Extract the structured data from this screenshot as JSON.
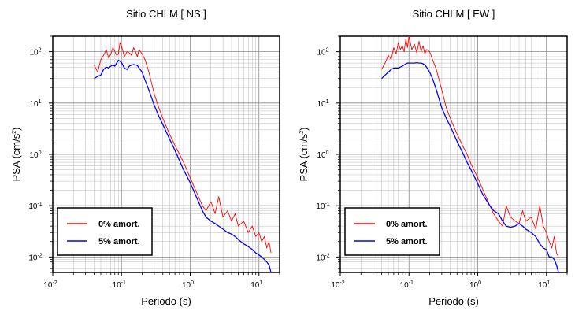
{
  "chart_data": [
    {
      "type": "line",
      "title": "Sitio CHLM [ NS ]",
      "xlabel": "Periodo (s)",
      "ylabel": "PSA (cm/s2)",
      "xscale": "log",
      "yscale": "log",
      "xlim": [
        0.01,
        20
      ],
      "ylim": [
        0.005,
        200
      ],
      "grid": true,
      "legend_position": "bottom-left",
      "x_tick_labels": [
        "10-2",
        "10-1",
        "100",
        "101"
      ],
      "y_tick_labels": [
        "10-2",
        "10-1",
        "100",
        "101",
        "102"
      ],
      "series": [
        {
          "name": "0% amort.",
          "color": "#ff0000",
          "x": [
            0.04,
            0.045,
            0.05,
            0.055,
            0.06,
            0.065,
            0.07,
            0.075,
            0.08,
            0.085,
            0.09,
            0.095,
            0.1,
            0.11,
            0.12,
            0.13,
            0.14,
            0.15,
            0.16,
            0.17,
            0.18,
            0.2,
            0.22,
            0.25,
            0.3,
            0.35,
            0.4,
            0.5,
            0.6,
            0.7,
            0.8,
            1.0,
            1.2,
            1.5,
            1.7,
            2.0,
            2.3,
            2.6,
            3.0,
            3.5,
            4.0,
            4.5,
            5.0,
            6.0,
            7.0,
            8.0,
            9.0,
            10.0,
            11.0,
            12.0,
            13.0,
            14.0,
            15.0
          ],
          "values": [
            55,
            40,
            70,
            85,
            110,
            75,
            90,
            120,
            100,
            85,
            90,
            150,
            130,
            80,
            100,
            95,
            85,
            120,
            100,
            80,
            110,
            90,
            70,
            40,
            15,
            8,
            5,
            2.5,
            1.5,
            1.0,
            0.7,
            0.35,
            0.2,
            0.1,
            0.08,
            0.12,
            0.07,
            0.15,
            0.06,
            0.08,
            0.05,
            0.07,
            0.04,
            0.05,
            0.03,
            0.04,
            0.025,
            0.03,
            0.02,
            0.025,
            0.015,
            0.02,
            0.012
          ]
        },
        {
          "name": "5% amort.",
          "color": "#0000ff",
          "x": [
            0.04,
            0.045,
            0.05,
            0.055,
            0.06,
            0.065,
            0.07,
            0.075,
            0.08,
            0.085,
            0.09,
            0.095,
            0.1,
            0.11,
            0.12,
            0.13,
            0.14,
            0.15,
            0.16,
            0.17,
            0.18,
            0.2,
            0.22,
            0.25,
            0.3,
            0.35,
            0.4,
            0.5,
            0.6,
            0.7,
            0.8,
            1.0,
            1.2,
            1.5,
            1.7,
            2.0,
            2.3,
            2.6,
            3.0,
            3.5,
            4.0,
            4.5,
            5.0,
            6.0,
            7.0,
            8.0,
            9.0,
            10.0,
            11.0,
            12.0,
            13.0,
            14.0,
            15.0
          ],
          "values": [
            30,
            33,
            35,
            45,
            50,
            48,
            52,
            55,
            52,
            60,
            68,
            65,
            62,
            48,
            45,
            52,
            55,
            56,
            55,
            54,
            48,
            40,
            28,
            18,
            9,
            5.5,
            3.8,
            2.0,
            1.2,
            0.75,
            0.5,
            0.28,
            0.16,
            0.08,
            0.06,
            0.05,
            0.045,
            0.04,
            0.035,
            0.03,
            0.028,
            0.025,
            0.022,
            0.018,
            0.016,
            0.014,
            0.012,
            0.011,
            0.01,
            0.009,
            0.008,
            0.007,
            0.005
          ]
        }
      ]
    },
    {
      "type": "line",
      "title": "Sitio CHLM [ EW ]",
      "xlabel": "Periodo (s)",
      "ylabel": "PSA (cm/s2)",
      "xscale": "log",
      "yscale": "log",
      "xlim": [
        0.01,
        20
      ],
      "ylim": [
        0.005,
        200
      ],
      "grid": true,
      "legend_position": "bottom-left",
      "x_tick_labels": [
        "10-2",
        "10-1",
        "100",
        "101"
      ],
      "y_tick_labels": [
        "10-2",
        "10-1",
        "100",
        "101",
        "102"
      ],
      "series": [
        {
          "name": "0% amort.",
          "color": "#ff0000",
          "x": [
            0.04,
            0.045,
            0.05,
            0.055,
            0.06,
            0.065,
            0.07,
            0.075,
            0.08,
            0.085,
            0.09,
            0.095,
            0.1,
            0.11,
            0.12,
            0.13,
            0.14,
            0.15,
            0.16,
            0.17,
            0.18,
            0.2,
            0.22,
            0.25,
            0.3,
            0.35,
            0.4,
            0.5,
            0.6,
            0.7,
            0.8,
            1.0,
            1.2,
            1.5,
            1.7,
            2.0,
            2.3,
            2.6,
            3.0,
            3.5,
            4.0,
            4.5,
            5.0,
            6.0,
            7.0,
            8.0,
            9.0,
            10.0,
            11.0,
            12.0,
            13.0,
            14.0,
            15.0
          ],
          "values": [
            45,
            60,
            85,
            70,
            120,
            90,
            150,
            110,
            130,
            100,
            180,
            120,
            200,
            110,
            140,
            95,
            160,
            100,
            130,
            90,
            110,
            100,
            70,
            45,
            18,
            8,
            5,
            2.5,
            1.5,
            1.0,
            0.65,
            0.35,
            0.2,
            0.1,
            0.07,
            0.05,
            0.04,
            0.1,
            0.06,
            0.05,
            0.045,
            0.08,
            0.05,
            0.06,
            0.035,
            0.1,
            0.04,
            0.03,
            0.02,
            0.015,
            0.025,
            0.012,
            0.01
          ]
        },
        {
          "name": "5% amort.",
          "color": "#0000ff",
          "x": [
            0.04,
            0.045,
            0.05,
            0.055,
            0.06,
            0.065,
            0.07,
            0.075,
            0.08,
            0.085,
            0.09,
            0.095,
            0.1,
            0.11,
            0.12,
            0.13,
            0.14,
            0.15,
            0.16,
            0.17,
            0.18,
            0.2,
            0.22,
            0.25,
            0.3,
            0.35,
            0.4,
            0.5,
            0.6,
            0.7,
            0.8,
            1.0,
            1.2,
            1.5,
            1.7,
            2.0,
            2.3,
            2.6,
            3.0,
            3.5,
            4.0,
            4.5,
            5.0,
            6.0,
            7.0,
            8.0,
            9.0,
            10.0,
            11.0,
            12.0,
            13.0,
            14.0,
            15.0
          ],
          "values": [
            30,
            35,
            40,
            45,
            48,
            48,
            48,
            50,
            52,
            55,
            58,
            60,
            60,
            60,
            60,
            61,
            60,
            60,
            58,
            55,
            50,
            40,
            30,
            18,
            8,
            5,
            3.5,
            1.8,
            1.1,
            0.7,
            0.5,
            0.27,
            0.16,
            0.1,
            0.08,
            0.07,
            0.05,
            0.04,
            0.038,
            0.04,
            0.045,
            0.04,
            0.035,
            0.03,
            0.025,
            0.018,
            0.015,
            0.014,
            0.01,
            0.01,
            0.009,
            0.007,
            0.005
          ]
        }
      ]
    }
  ]
}
